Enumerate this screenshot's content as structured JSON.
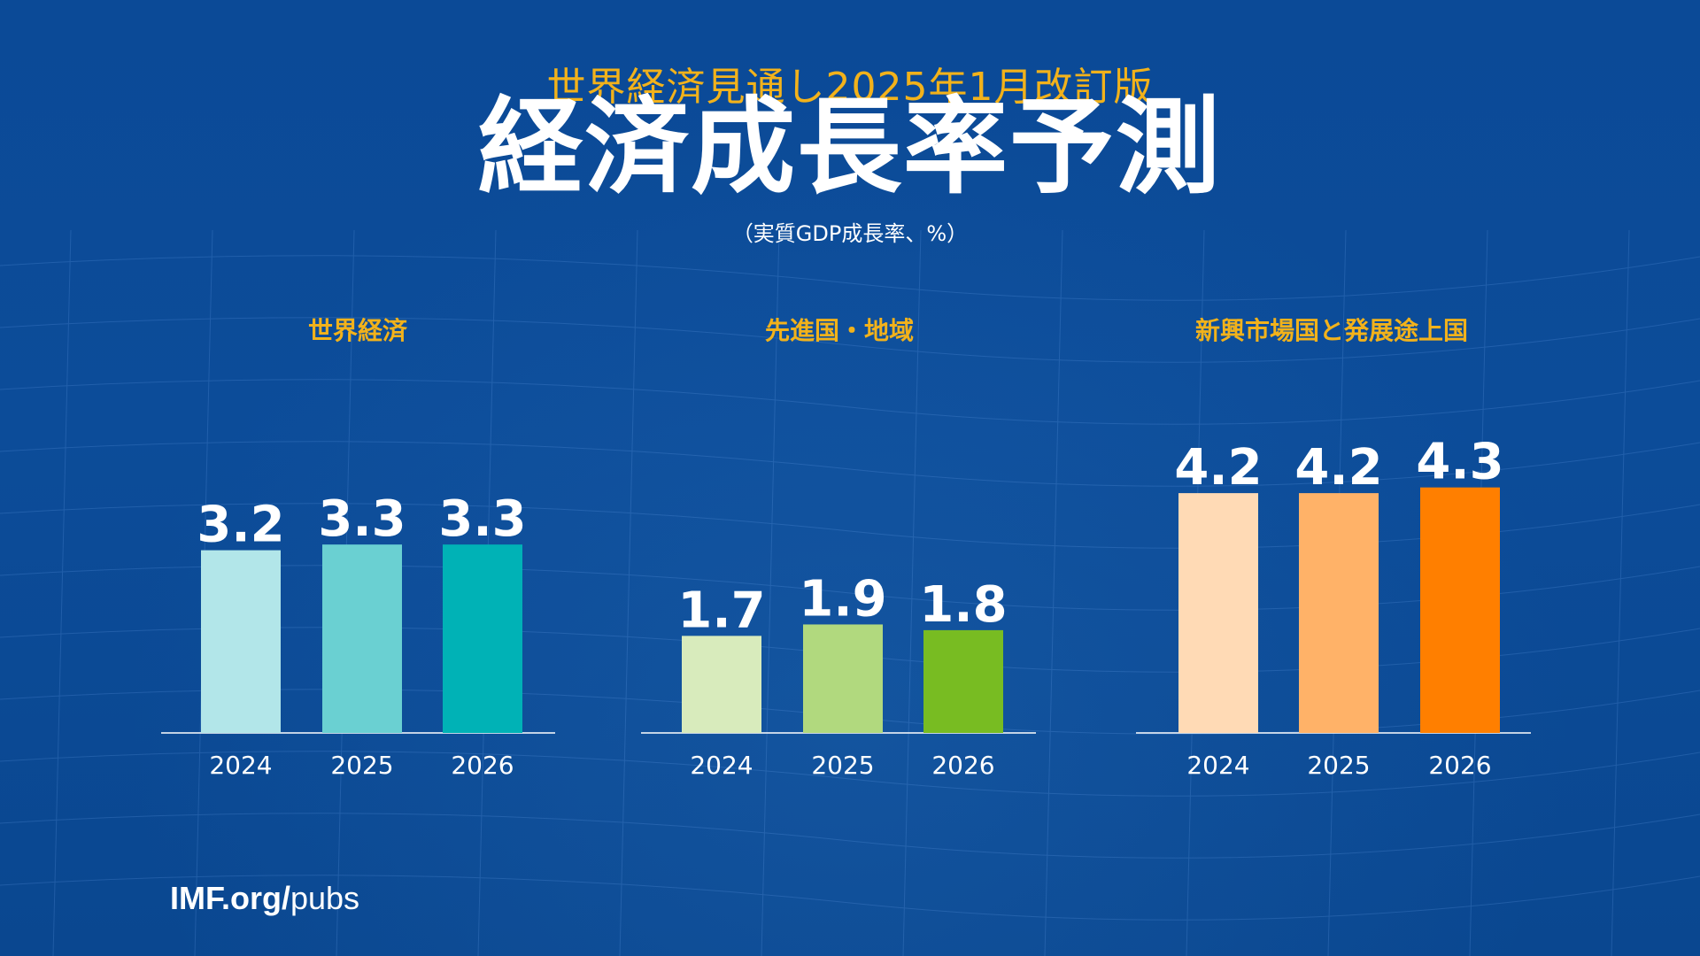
{
  "header": {
    "subtitle": "世界経済見通し2025年1月改訂版",
    "title": "経済成長率予測",
    "unit": "（実質GDP成長率、%）"
  },
  "footer": {
    "domain": "IMF.org/",
    "path": "pubs"
  },
  "colors": {
    "background": "#0b4a97",
    "accent": "#f2b21b",
    "text": "#ffffff"
  },
  "chart_data": [
    {
      "type": "bar",
      "title": "世界経済",
      "categories": [
        "2024",
        "2025",
        "2026"
      ],
      "values": [
        3.2,
        3.3,
        3.3
      ],
      "labels": [
        "3.2",
        "3.3",
        "3.3"
      ],
      "colors": [
        "#b2e6e9",
        "#6ad0d2",
        "#00b2b6"
      ]
    },
    {
      "type": "bar",
      "title": "先進国・地域",
      "categories": [
        "2024",
        "2025",
        "2026"
      ],
      "values": [
        1.7,
        1.9,
        1.8
      ],
      "labels": [
        "1.7",
        "1.9",
        "1.8"
      ],
      "colors": [
        "#d8ebbc",
        "#b1d97e",
        "#78bc22"
      ]
    },
    {
      "type": "bar",
      "title": "新興市場国と発展途上国",
      "categories": [
        "2024",
        "2025",
        "2026"
      ],
      "values": [
        4.2,
        4.2,
        4.3
      ],
      "labels": [
        "4.2",
        "4.2",
        "4.3"
      ],
      "colors": [
        "#ffdab5",
        "#ffb268",
        "#ff7f00"
      ]
    }
  ]
}
